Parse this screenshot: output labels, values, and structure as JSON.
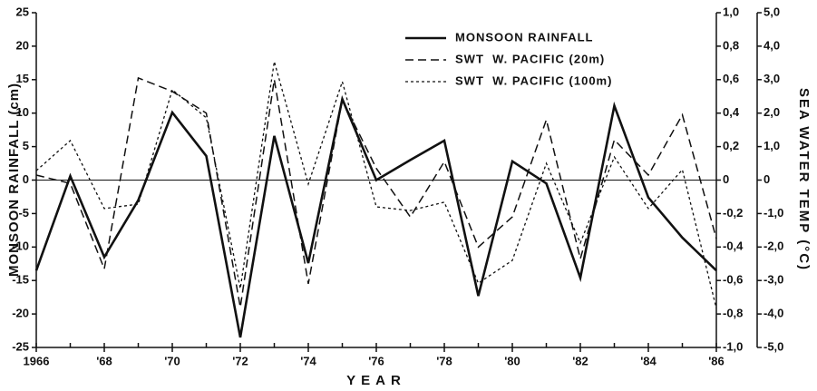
{
  "chart_data": {
    "type": "line",
    "xlabel": "YEAR",
    "ylabel": "MONSOON RAINFALL (cm)",
    "y2label": "SEA WATER TEMP (°C)",
    "x": [
      1966,
      1967,
      1968,
      1969,
      1970,
      1971,
      1972,
      1973,
      1974,
      1975,
      1976,
      1977,
      1978,
      1979,
      1980,
      1981,
      1982,
      1983,
      1984,
      1985,
      1986
    ],
    "xlim": [
      1966,
      1986
    ],
    "xticks": [
      1966,
      {
        "value": 1968,
        "label": "'68"
      },
      {
        "value": 1970,
        "label": "'70"
      },
      {
        "value": 1972,
        "label": "'72"
      },
      {
        "value": 1974,
        "label": "'74"
      },
      {
        "value": 1976,
        "label": "'76"
      },
      {
        "value": 1978,
        "label": "'78"
      },
      {
        "value": 1980,
        "label": "'80"
      },
      {
        "value": 1982,
        "label": "'82"
      },
      {
        "value": 1984,
        "label": "'84"
      },
      {
        "value": 1986,
        "label": "'86"
      }
    ],
    "ylim": [
      -25,
      25
    ],
    "yticks": [
      -25,
      -20,
      -15,
      -10,
      -5,
      0,
      5,
      10,
      15,
      20,
      25
    ],
    "y2lim": [
      -1.0,
      1.0
    ],
    "y2ticks": [
      {
        "value": 1.0,
        "label": "1,0"
      },
      {
        "value": 0.8,
        "label": "0,8"
      },
      {
        "value": 0.6,
        "label": "0,6"
      },
      {
        "value": 0.4,
        "label": "0,4"
      },
      {
        "value": 0.2,
        "label": "0,2"
      },
      0,
      {
        "value": -0.2,
        "label": "-0,2"
      },
      {
        "value": -0.4,
        "label": "-0,4"
      },
      {
        "value": -0.6,
        "label": "-0,6"
      },
      {
        "value": -0.8,
        "label": "-0,8"
      },
      {
        "value": -1.0,
        "label": "-1,0"
      }
    ],
    "y3lim": [
      -5.0,
      5.0
    ],
    "y3ticks": [
      {
        "value": 5.0,
        "label": "5,0"
      },
      {
        "value": 4.0,
        "label": "4,0"
      },
      {
        "value": 3.0,
        "label": "3,0"
      },
      {
        "value": 2.0,
        "label": "2,0"
      },
      {
        "value": 1.0,
        "label": "1,0"
      },
      0,
      {
        "value": -1.0,
        "label": "-1,0"
      },
      {
        "value": -2.0,
        "label": "-2,0"
      },
      {
        "value": -3.0,
        "label": "-3,0"
      },
      {
        "value": -4.0,
        "label": "-4,0"
      },
      {
        "value": -5.0,
        "label": "-5,0"
      }
    ],
    "zero_line": true,
    "series": [
      {
        "name": "MONSOON RAINFALL",
        "color": "#111111",
        "dash": "solid",
        "axis": "y",
        "values": [
          -13.5,
          0.6,
          -11.5,
          -3,
          10.1,
          3.6,
          -23.5,
          6.6,
          -12.4,
          12.1,
          0,
          3,
          5.9,
          -17.3,
          2.8,
          -0.5,
          -14.6,
          11.1,
          -2.6,
          -8.6,
          -13.5
        ]
      },
      {
        "name": "SWT  W. PACIFIC (20m)",
        "color": "#111111",
        "dash": "dashed",
        "axis": "y2",
        "values": [
          0.03,
          -0.02,
          -0.53,
          0.61,
          0.53,
          0.4,
          -0.76,
          0.6,
          -0.62,
          0.48,
          0.07,
          -0.22,
          0.11,
          -0.4,
          -0.22,
          0.36,
          -0.47,
          0.24,
          0.03,
          0.39,
          -0.35
        ]
      },
      {
        "name": "SWT  W. PACIFIC (100m)",
        "color": "#111111",
        "dash": "dotted",
        "axis": "y3",
        "values": [
          0.28,
          1.18,
          -0.85,
          -0.72,
          2.7,
          1.86,
          -3.24,
          3.54,
          -0.12,
          2.94,
          -0.8,
          -0.91,
          -0.66,
          -3.08,
          -2.4,
          0.5,
          -1.88,
          0.69,
          -0.85,
          0.31,
          -3.83
        ]
      }
    ]
  }
}
